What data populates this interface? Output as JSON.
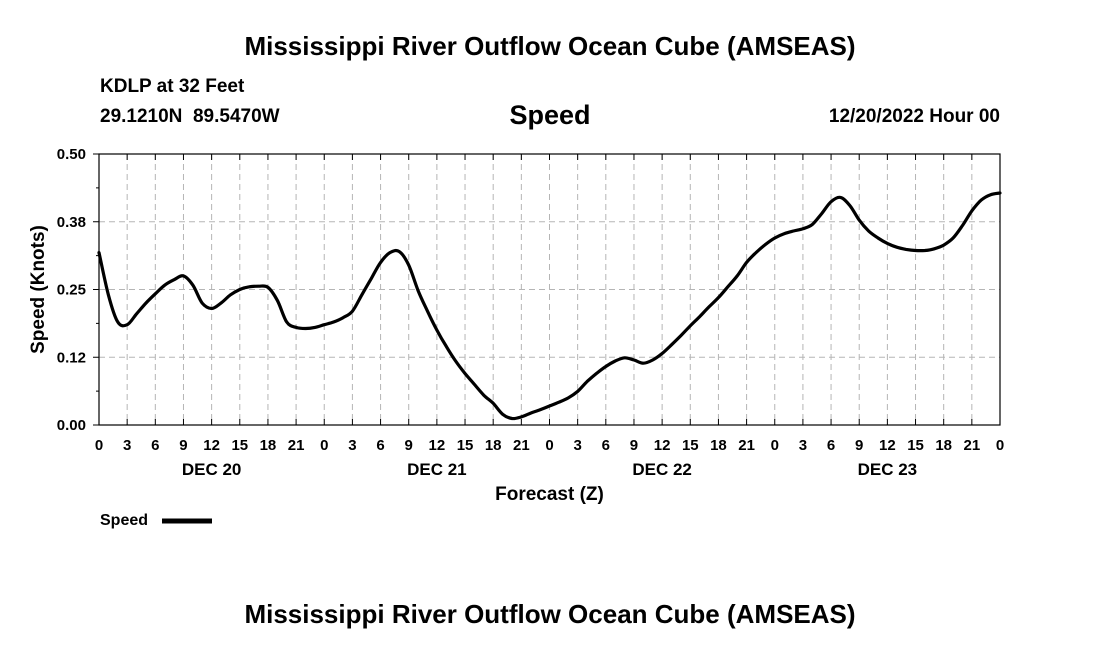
{
  "page": {
    "title": "Mississippi River Outflow Ocean Cube (AMSEAS)",
    "footer_title": "Mississippi River Outflow Ocean Cube (AMSEAS)",
    "station": "KDLP at 32 Feet",
    "coords": "29.1210N  89.5470W",
    "subtitle": "Speed",
    "run": "12/20/2022 Hour 00",
    "legend_label": "Speed"
  },
  "chart_data": {
    "type": "line",
    "title": "Speed",
    "xlabel": "Forecast (Z)",
    "ylabel": "Speed (Knots)",
    "xlim": [
      0,
      96
    ],
    "ylim": [
      0,
      0.5
    ],
    "yticks": [
      0,
      0.125,
      0.25,
      0.375,
      0.5
    ],
    "ytick_labels": [
      "0.00",
      "0.12",
      "0.25",
      "0.38",
      "0.50"
    ],
    "xticks": [
      0,
      3,
      6,
      9,
      12,
      15,
      18,
      21,
      24,
      27,
      30,
      33,
      36,
      39,
      42,
      45,
      48,
      51,
      54,
      57,
      60,
      63,
      66,
      69,
      72,
      75,
      78,
      81,
      84,
      87,
      90,
      93,
      96
    ],
    "xtick_labels": [
      "0",
      "3",
      "6",
      "9",
      "12",
      "15",
      "18",
      "21",
      "0",
      "3",
      "6",
      "9",
      "12",
      "15",
      "18",
      "21",
      "0",
      "3",
      "6",
      "9",
      "12",
      "15",
      "18",
      "21",
      "0",
      "3",
      "6",
      "9",
      "12",
      "15",
      "18",
      "21",
      "0"
    ],
    "day_labels": [
      {
        "hour": 12,
        "label": "DEC 20"
      },
      {
        "hour": 36,
        "label": "DEC 21"
      },
      {
        "hour": 60,
        "label": "DEC 22"
      },
      {
        "hour": 84,
        "label": "DEC 23"
      }
    ],
    "grid": true,
    "line_color": "#000000",
    "series": [
      {
        "name": "Speed",
        "x": [
          0,
          1,
          2,
          3,
          4,
          5,
          6,
          7,
          8,
          9,
          10,
          11,
          12,
          13,
          14,
          15,
          16,
          17,
          18,
          19,
          20,
          21,
          22,
          23,
          24,
          25,
          26,
          27,
          28,
          29,
          30,
          31,
          32,
          33,
          34,
          35,
          36,
          37,
          38,
          39,
          40,
          41,
          42,
          43,
          44,
          45,
          46,
          47,
          48,
          49,
          50,
          51,
          52,
          53,
          54,
          55,
          56,
          57,
          58,
          59,
          60,
          61,
          62,
          63,
          64,
          65,
          66,
          67,
          68,
          69,
          70,
          71,
          72,
          73,
          74,
          75,
          76,
          77,
          78,
          79,
          80,
          81,
          82,
          83,
          84,
          85,
          86,
          87,
          88,
          89,
          90,
          91,
          92,
          93,
          94,
          95,
          96
        ],
        "values": [
          0.318,
          0.24,
          0.19,
          0.185,
          0.205,
          0.225,
          0.242,
          0.258,
          0.268,
          0.275,
          0.258,
          0.225,
          0.215,
          0.225,
          0.24,
          0.25,
          0.255,
          0.256,
          0.254,
          0.23,
          0.19,
          0.18,
          0.178,
          0.18,
          0.185,
          0.19,
          0.198,
          0.21,
          0.24,
          0.27,
          0.3,
          0.318,
          0.32,
          0.295,
          0.248,
          0.21,
          0.175,
          0.145,
          0.118,
          0.095,
          0.075,
          0.055,
          0.04,
          0.02,
          0.012,
          0.015,
          0.022,
          0.028,
          0.035,
          0.042,
          0.05,
          0.062,
          0.08,
          0.095,
          0.108,
          0.118,
          0.124,
          0.12,
          0.114,
          0.12,
          0.132,
          0.148,
          0.165,
          0.183,
          0.2,
          0.218,
          0.235,
          0.255,
          0.275,
          0.3,
          0.318,
          0.333,
          0.345,
          0.353,
          0.358,
          0.362,
          0.37,
          0.39,
          0.412,
          0.42,
          0.405,
          0.378,
          0.358,
          0.345,
          0.335,
          0.328,
          0.324,
          0.322,
          0.322,
          0.325,
          0.332,
          0.345,
          0.368,
          0.395,
          0.415,
          0.425,
          0.428
        ]
      }
    ]
  }
}
